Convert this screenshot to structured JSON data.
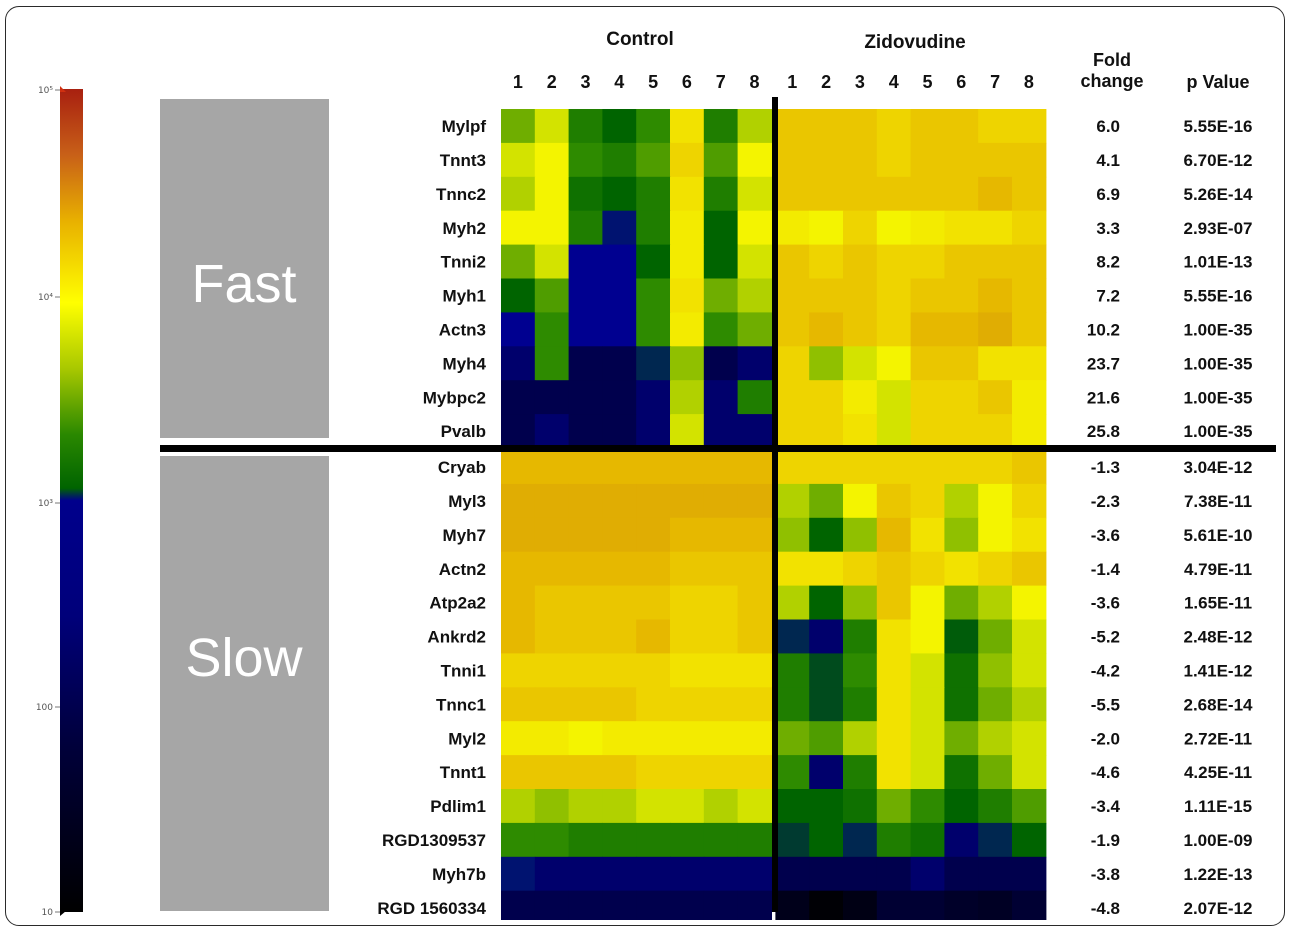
{
  "chart_data": {
    "type": "heatmap",
    "column_groups": [
      "Control",
      "Zidovudine"
    ],
    "columns": {
      "Control": [
        "1",
        "2",
        "3",
        "4",
        "5",
        "6",
        "7",
        "8"
      ],
      "Zidovudine": [
        "1",
        "2",
        "3",
        "4",
        "5",
        "6",
        "7",
        "8"
      ]
    },
    "stat_headers": {
      "fold_change": "Fold change",
      "p_value": "p Value"
    },
    "colorbar": {
      "scale": "log",
      "range": [
        10,
        100000
      ],
      "tick_labels": [
        "10⁵",
        "10⁴",
        "10³",
        "100",
        "10"
      ],
      "colors": [
        "#000000",
        "#000080",
        "#0000d0",
        "#006400",
        "#80c000",
        "#ffff00",
        "#e09000",
        "#c05010",
        "#a02010"
      ]
    },
    "row_groups": [
      {
        "name": "Fast",
        "rows": [
          {
            "gene": "Mylpf",
            "fold_change": "6.0",
            "p_value": "5.55E-16",
            "values": [
              2.6,
              2.9,
              2.3,
              2.1,
              2.4,
              3.2,
              2.3,
              2.8,
              3.4,
              3.4,
              3.4,
              3.3,
              3.4,
              3.4,
              3.3,
              3.3
            ]
          },
          {
            "gene": "Tnnt3",
            "fold_change": "4.1",
            "p_value": "6.70E-12",
            "values": [
              2.9,
              3.0,
              2.4,
              2.3,
              2.5,
              3.3,
              2.5,
              3.0,
              3.4,
              3.4,
              3.4,
              3.3,
              3.4,
              3.4,
              3.4,
              3.4
            ]
          },
          {
            "gene": "Tnnc2",
            "fold_change": "6.9",
            "p_value": "5.26E-14",
            "values": [
              2.8,
              3.0,
              2.2,
              2.1,
              2.3,
              3.2,
              2.3,
              2.9,
              3.4,
              3.4,
              3.4,
              3.4,
              3.4,
              3.4,
              3.5,
              3.4
            ]
          },
          {
            "gene": "Myh2",
            "fold_change": "3.3",
            "p_value": "2.93E-07",
            "values": [
              3.0,
              3.0,
              2.3,
              1.4,
              2.3,
              3.1,
              2.1,
              3.0,
              3.1,
              3.0,
              3.3,
              3.0,
              3.1,
              3.2,
              3.2,
              3.3
            ]
          },
          {
            "gene": "Tnni2",
            "fold_change": "8.2",
            "p_value": "1.01E-13",
            "values": [
              2.6,
              2.9,
              1.3,
              1.3,
              2.1,
              3.1,
              2.1,
              2.9,
              3.4,
              3.3,
              3.4,
              3.3,
              3.3,
              3.4,
              3.4,
              3.4
            ]
          },
          {
            "gene": "Myh1",
            "fold_change": "7.2",
            "p_value": "5.55E-16",
            "values": [
              2.1,
              2.5,
              1.3,
              1.3,
              2.4,
              3.2,
              2.6,
              2.8,
              3.4,
              3.4,
              3.4,
              3.3,
              3.4,
              3.4,
              3.5,
              3.4
            ]
          },
          {
            "gene": "Actn3",
            "fold_change": "10.2",
            "p_value": "1.00E-35",
            "values": [
              1.3,
              2.4,
              1.3,
              1.3,
              2.4,
              3.1,
              2.4,
              2.6,
              3.4,
              3.5,
              3.4,
              3.3,
              3.5,
              3.5,
              3.6,
              3.4
            ]
          },
          {
            "gene": "Myh4",
            "fold_change": "23.7",
            "p_value": "1.00E-35",
            "values": [
              1.2,
              2.4,
              1.1,
              1.1,
              1.5,
              2.7,
              1.1,
              1.2,
              3.3,
              2.7,
              2.9,
              3.0,
              3.4,
              3.4,
              3.2,
              3.2
            ]
          },
          {
            "gene": "Mybpc2",
            "fold_change": "21.6",
            "p_value": "1.00E-35",
            "values": [
              1.1,
              1.1,
              1.1,
              1.1,
              1.2,
              2.8,
              1.2,
              2.3,
              3.3,
              3.3,
              3.1,
              2.9,
              3.3,
              3.3,
              3.4,
              3.1
            ]
          },
          {
            "gene": "Pvalb",
            "fold_change": "25.8",
            "p_value": "1.00E-35",
            "values": [
              1.1,
              1.2,
              1.1,
              1.1,
              1.2,
              2.9,
              1.2,
              1.2,
              3.3,
              3.3,
              3.2,
              2.9,
              3.3,
              3.3,
              3.3,
              3.1
            ]
          }
        ]
      },
      {
        "name": "Slow",
        "rows": [
          {
            "gene": "Cryab",
            "fold_change": "-1.3",
            "p_value": "3.04E-12",
            "values": [
              3.5,
              3.5,
              3.5,
              3.5,
              3.5,
              3.5,
              3.5,
              3.5,
              3.3,
              3.3,
              3.3,
              3.3,
              3.3,
              3.3,
              3.3,
              3.4
            ]
          },
          {
            "gene": "Myl3",
            "fold_change": "-2.3",
            "p_value": "7.38E-11",
            "values": [
              3.6,
              3.6,
              3.6,
              3.6,
              3.6,
              3.6,
              3.6,
              3.6,
              2.8,
              2.6,
              3.0,
              3.4,
              3.3,
              2.8,
              3.0,
              3.3
            ]
          },
          {
            "gene": "Myh7",
            "fold_change": "-3.6",
            "p_value": "5.61E-10",
            "values": [
              3.6,
              3.6,
              3.6,
              3.6,
              3.6,
              3.5,
              3.5,
              3.5,
              2.7,
              2.1,
              2.7,
              3.5,
              3.2,
              2.7,
              3.0,
              3.2
            ]
          },
          {
            "gene": "Actn2",
            "fold_change": "-1.4",
            "p_value": "4.79E-11",
            "values": [
              3.5,
              3.5,
              3.5,
              3.5,
              3.5,
              3.4,
              3.4,
              3.4,
              3.2,
              3.2,
              3.3,
              3.4,
              3.3,
              3.2,
              3.3,
              3.4
            ]
          },
          {
            "gene": "Atp2a2",
            "fold_change": "-3.6",
            "p_value": "1.65E-11",
            "values": [
              3.5,
              3.4,
              3.4,
              3.4,
              3.4,
              3.3,
              3.3,
              3.4,
              2.8,
              2.1,
              2.7,
              3.4,
              3.0,
              2.6,
              2.8,
              3.0
            ]
          },
          {
            "gene": "Ankrd2",
            "fold_change": "-5.2",
            "p_value": "2.48E-12",
            "values": [
              3.5,
              3.4,
              3.4,
              3.4,
              3.5,
              3.3,
              3.3,
              3.4,
              1.5,
              1.2,
              2.3,
              3.2,
              3.0,
              2.0,
              2.6,
              2.9
            ]
          },
          {
            "gene": "Tnni1",
            "fold_change": "-4.2",
            "p_value": "1.41E-12",
            "values": [
              3.3,
              3.3,
              3.3,
              3.3,
              3.3,
              3.2,
              3.2,
              3.2,
              2.3,
              1.8,
              2.4,
              3.2,
              2.9,
              2.2,
              2.7,
              2.9
            ]
          },
          {
            "gene": "Tnnc1",
            "fold_change": "-5.5",
            "p_value": "2.68E-14",
            "values": [
              3.4,
              3.4,
              3.4,
              3.4,
              3.3,
              3.3,
              3.3,
              3.3,
              2.3,
              1.8,
              2.3,
              3.2,
              2.9,
              2.2,
              2.6,
              2.8
            ]
          },
          {
            "gene": "Myl2",
            "fold_change": "-2.0",
            "p_value": "2.72E-11",
            "values": [
              3.1,
              3.1,
              3.0,
              3.1,
              3.1,
              3.1,
              3.1,
              3.1,
              2.6,
              2.5,
              2.8,
              3.2,
              2.9,
              2.6,
              2.8,
              2.9
            ]
          },
          {
            "gene": "Tnnt1",
            "fold_change": "-4.6",
            "p_value": "4.25E-11",
            "values": [
              3.4,
              3.4,
              3.4,
              3.4,
              3.3,
              3.3,
              3.3,
              3.3,
              2.4,
              1.2,
              2.3,
              3.2,
              2.9,
              2.2,
              2.6,
              2.9
            ]
          },
          {
            "gene": "Pdlim1",
            "fold_change": "-3.4",
            "p_value": "1.11E-15",
            "values": [
              2.8,
              2.7,
              2.8,
              2.8,
              2.9,
              2.9,
              2.8,
              2.9,
              2.1,
              2.1,
              2.2,
              2.6,
              2.4,
              2.1,
              2.3,
              2.5
            ]
          },
          {
            "gene": "RGD1309537",
            "fold_change": "-1.9",
            "p_value": "1.00E-09",
            "values": [
              2.4,
              2.4,
              2.3,
              2.3,
              2.3,
              2.3,
              2.3,
              2.3,
              1.6,
              2.1,
              1.5,
              2.3,
              2.2,
              1.2,
              1.5,
              2.1
            ]
          },
          {
            "gene": "Myh7b",
            "fold_change": "-3.8",
            "p_value": "1.22E-13",
            "values": [
              1.4,
              1.2,
              1.2,
              1.2,
              1.2,
              1.2,
              1.2,
              1.2,
              1.1,
              1.1,
              1.1,
              1.1,
              1.2,
              1.1,
              1.1,
              1.1
            ]
          },
          {
            "gene": "RGD 1560334",
            "fold_change": "-4.8",
            "p_value": "2.07E-12",
            "values": [
              1.1,
              1.1,
              1.1,
              1.1,
              1.1,
              1.1,
              1.1,
              1.1,
              0.5,
              0.1,
              0.4,
              1.0,
              1.0,
              0.8,
              0.7,
              1.0
            ]
          }
        ]
      }
    ]
  }
}
